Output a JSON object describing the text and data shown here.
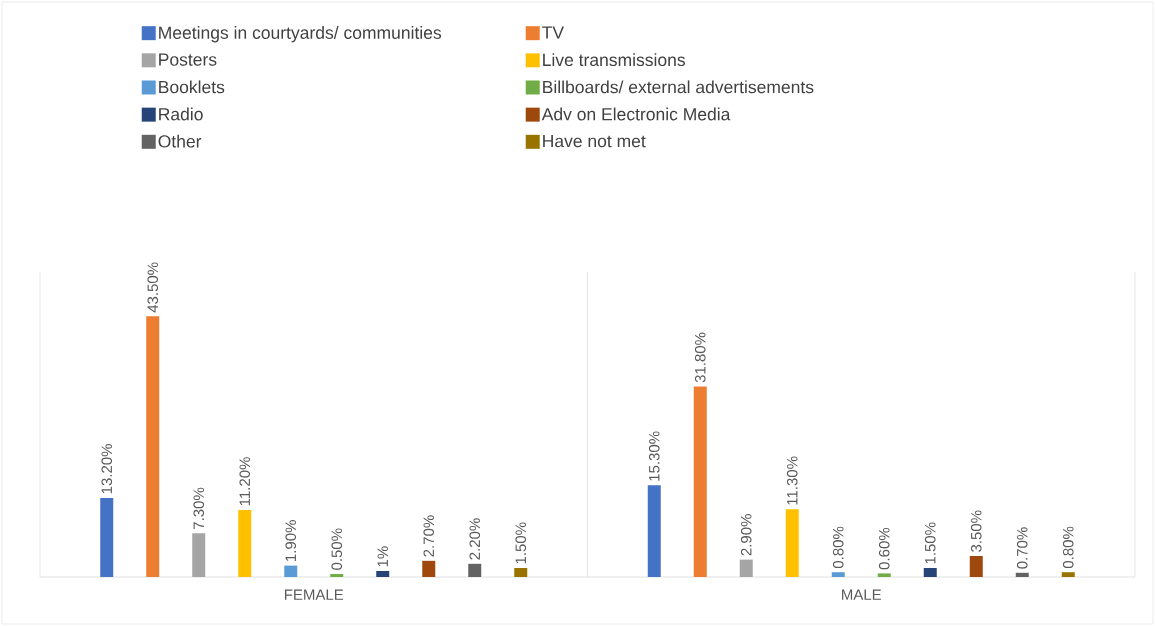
{
  "chart_data": {
    "type": "bar",
    "categories": [
      "FEMALE",
      "MALE"
    ],
    "legend": "top",
    "series": [
      {
        "name": "Meetings in courtyards/ communities",
        "color": "#4472c4",
        "values": [
          13.2,
          15.3
        ],
        "value_labels": [
          "13.20%",
          "15.30%"
        ]
      },
      {
        "name": "TV",
        "color": "#ed7d31",
        "values": [
          43.5,
          31.8
        ],
        "value_labels": [
          "43.50%",
          "31.80%"
        ]
      },
      {
        "name": "Posters",
        "color": "#a5a5a5",
        "values": [
          7.3,
          2.9
        ],
        "value_labels": [
          "7.30%",
          "2.90%"
        ]
      },
      {
        "name": "Live transmissions",
        "color": "#ffc000",
        "values": [
          11.2,
          11.3
        ],
        "value_labels": [
          "11.20%",
          "11.30%"
        ]
      },
      {
        "name": "Booklets",
        "color": "#5b9bd5",
        "values": [
          1.9,
          0.8
        ],
        "value_labels": [
          "1.90%",
          "0.80%"
        ]
      },
      {
        "name": "Billboards/ external advertisements",
        "color": "#70ad47",
        "values": [
          0.5,
          0.6
        ],
        "value_labels": [
          "0.50%",
          "0.60%"
        ]
      },
      {
        "name": "Radio",
        "color": "#264478",
        "values": [
          1,
          1.5
        ],
        "value_labels": [
          "1%",
          "1.50%"
        ]
      },
      {
        "name": "Adv on Electronic Media",
        "color": "#9e480e",
        "values": [
          2.7,
          3.5
        ],
        "value_labels": [
          "2.70%",
          "3.50%"
        ]
      },
      {
        "name": "Other",
        "color": "#636363",
        "values": [
          2.2,
          0.7
        ],
        "value_labels": [
          "2.20%",
          "0.70%"
        ]
      },
      {
        "name": "Have not met",
        "color": "#997300",
        "values": [
          1.5,
          0.8
        ],
        "value_labels": [
          "1.50%",
          "0.80%"
        ]
      }
    ]
  }
}
